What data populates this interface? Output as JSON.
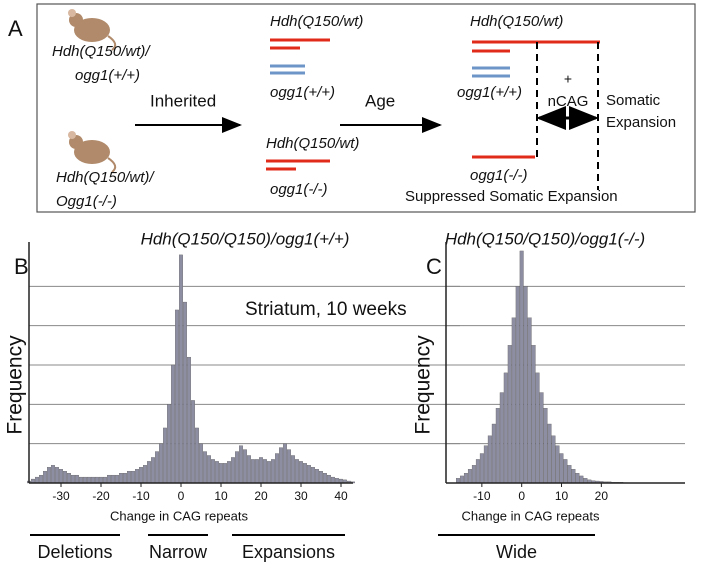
{
  "panel_a": {
    "label": "A",
    "mouse_wt": [
      "Hdh(Q150/wt)/",
      "ogg1(+/+)"
    ],
    "mouse_ko": [
      "Hdh(Q150/wt)/",
      "Ogg1(-/-)"
    ],
    "arrow_1": "Inherited",
    "arrow_2": "Age",
    "mid_wt": [
      "Hdh(Q150/wt)",
      "ogg1(+/+)"
    ],
    "mid_ko": [
      "Hdh(Q150/wt)",
      "ogg1(-/-)"
    ],
    "right_wt": [
      "Hdh(Q150/wt)",
      "ogg1(+/+)"
    ],
    "right_ko": "ogg1(-/-)",
    "gain": [
      "+",
      "nCAG"
    ],
    "expansion": [
      "Somatic",
      "Expansion"
    ],
    "suppressed": "Suppressed Somatic Expansion"
  },
  "chart_data": [
    {
      "type": "bar",
      "panel_label": "B",
      "title": "Hdh(Q150/Q150)/ogg1(+/+)",
      "annotation": "Striatum, 10 weeks",
      "x_label": "Change in CAG repeats",
      "y_label": "Frequency",
      "color": "#8e8ea2",
      "grid": true,
      "xlim": [
        -38,
        43
      ],
      "ylim": [
        0,
        6
      ],
      "xticks": [
        -30,
        -20,
        -10,
        0,
        10,
        20,
        30,
        40
      ],
      "x": [
        -38,
        -37,
        -36,
        -35,
        -34,
        -33,
        -32,
        -31,
        -30,
        -29,
        -28,
        -27,
        -26,
        -25,
        -24,
        -23,
        -22,
        -21,
        -20,
        -19,
        -18,
        -17,
        -16,
        -15,
        -14,
        -13,
        -12,
        -11,
        -10,
        -9,
        -8,
        -7,
        -6,
        -5,
        -4,
        -3,
        -2,
        -1,
        0,
        1,
        2,
        3,
        4,
        5,
        6,
        7,
        8,
        9,
        10,
        11,
        12,
        13,
        14,
        15,
        16,
        17,
        18,
        19,
        20,
        21,
        22,
        23,
        24,
        25,
        26,
        27,
        28,
        29,
        30,
        31,
        32,
        33,
        34,
        35,
        36,
        37,
        38,
        39,
        40,
        41,
        42,
        43
      ],
      "values": [
        0.05,
        0.1,
        0.15,
        0.2,
        0.3,
        0.4,
        0.45,
        0.4,
        0.35,
        0.3,
        0.25,
        0.2,
        0.2,
        0.15,
        0.15,
        0.15,
        0.15,
        0.15,
        0.15,
        0.15,
        0.2,
        0.2,
        0.2,
        0.25,
        0.25,
        0.3,
        0.3,
        0.35,
        0.4,
        0.45,
        0.55,
        0.65,
        0.8,
        1.0,
        1.4,
        2.0,
        3.0,
        4.4,
        5.8,
        4.6,
        3.2,
        2.1,
        1.4,
        1.0,
        0.8,
        0.7,
        0.6,
        0.55,
        0.5,
        0.5,
        0.55,
        0.65,
        0.8,
        0.95,
        0.85,
        0.7,
        0.6,
        0.6,
        0.65,
        0.6,
        0.55,
        0.6,
        0.75,
        0.9,
        1.0,
        0.85,
        0.7,
        0.6,
        0.55,
        0.5,
        0.45,
        0.4,
        0.35,
        0.3,
        0.25,
        0.2,
        0.15,
        0.12,
        0.1,
        0.08,
        0.05,
        0.03
      ],
      "range_labels": [
        "Deletions",
        "Narrow",
        "Expansions"
      ]
    },
    {
      "type": "bar",
      "panel_label": "C",
      "title": "Hdh(Q150/Q150)/ogg1(-/-)",
      "x_label": "Change in CAG repeats",
      "y_label": "Frequency",
      "color": "#8e8ea2",
      "grid": true,
      "xlim": [
        -19,
        41
      ],
      "ylim": [
        0,
        6
      ],
      "xticks": [
        -10,
        0,
        10,
        20
      ],
      "x": [
        -16,
        -15,
        -14,
        -13,
        -12,
        -11,
        -10,
        -9,
        -8,
        -7,
        -6,
        -5,
        -4,
        -3,
        -2,
        -1,
        0,
        1,
        2,
        3,
        4,
        5,
        6,
        7,
        8,
        9,
        10,
        11,
        12,
        13,
        14,
        15,
        16,
        17,
        18,
        19,
        20,
        21,
        22,
        23,
        24,
        25,
        26
      ],
      "values": [
        0.12,
        0.18,
        0.25,
        0.35,
        0.45,
        0.6,
        0.75,
        0.95,
        1.2,
        1.5,
        1.9,
        2.3,
        2.8,
        3.5,
        4.2,
        5.0,
        5.9,
        5.0,
        4.2,
        3.5,
        2.8,
        2.3,
        1.9,
        1.5,
        1.2,
        0.95,
        0.75,
        0.6,
        0.45,
        0.35,
        0.25,
        0.18,
        0.12,
        0.08,
        0.06,
        0.05,
        0.04,
        0.03,
        0.03,
        0.02,
        0.02,
        0.02,
        0.01
      ],
      "range_labels": [
        "Wide"
      ]
    }
  ]
}
